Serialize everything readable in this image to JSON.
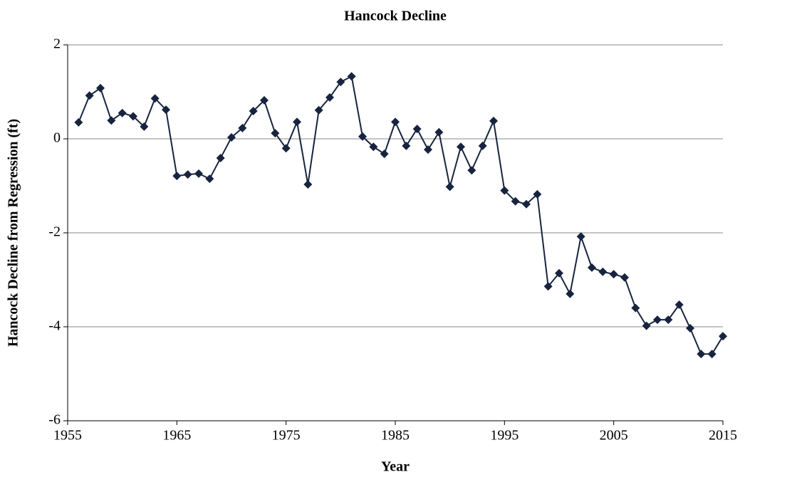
{
  "chart_data": {
    "type": "line",
    "title": "Hancock Decline",
    "x_label": "Year",
    "y_label": "Hancock Decline from Regression (ft)",
    "x": [
      1956,
      1957,
      1958,
      1959,
      1960,
      1961,
      1962,
      1963,
      1964,
      1965,
      1966,
      1967,
      1968,
      1969,
      1970,
      1971,
      1972,
      1973,
      1974,
      1975,
      1976,
      1977,
      1978,
      1979,
      1980,
      1981,
      1982,
      1983,
      1984,
      1985,
      1986,
      1987,
      1988,
      1989,
      1990,
      1991,
      1992,
      1993,
      1994,
      1995,
      1996,
      1997,
      1998,
      1999,
      2000,
      2001,
      2002,
      2003,
      2004,
      2005,
      2006,
      2007,
      2008,
      2009,
      2010,
      2011,
      2012,
      2013,
      2014,
      2015
    ],
    "series": [
      {
        "name": "Hancock Decline",
        "color": "#17243f",
        "values": [
          0.35,
          0.92,
          1.08,
          0.39,
          0.55,
          0.48,
          0.26,
          0.86,
          0.62,
          -0.79,
          -0.76,
          -0.74,
          -0.85,
          -0.41,
          0.03,
          0.23,
          0.59,
          0.82,
          0.12,
          -0.2,
          0.36,
          -0.97,
          0.61,
          0.88,
          1.21,
          1.33,
          0.05,
          -0.17,
          -0.32,
          0.36,
          -0.15,
          0.21,
          -0.23,
          0.14,
          -1.02,
          -0.17,
          -0.67,
          -0.15,
          0.38,
          -1.1,
          -1.33,
          -1.39,
          -1.18,
          -3.14,
          -2.86,
          -3.3,
          -2.08,
          -2.74,
          -2.83,
          -2.88,
          -2.95,
          -3.6,
          -3.98,
          -3.85,
          -3.85,
          -3.53,
          -4.03,
          -4.58,
          -4.58,
          -4.2
        ]
      }
    ],
    "xlim": [
      1955,
      2015
    ],
    "xticks": [
      1955,
      1965,
      1975,
      1985,
      1995,
      2005,
      2015
    ],
    "ylim": [
      -6,
      2
    ],
    "yticks": [
      -6,
      -4,
      -2,
      0,
      2
    ],
    "grid": true
  }
}
